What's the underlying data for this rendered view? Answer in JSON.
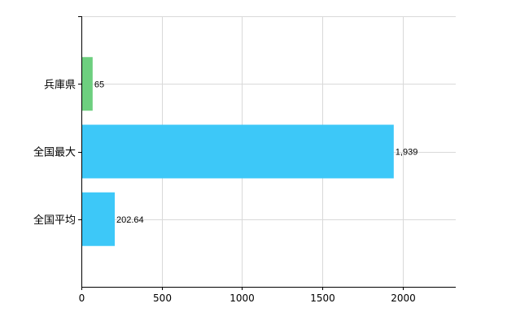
{
  "chart_data": {
    "type": "bar",
    "orientation": "horizontal",
    "categories": [
      "兵庫県",
      "全国最大",
      "全国平均"
    ],
    "values": [
      65,
      1939,
      202.64
    ],
    "value_labels": [
      "65",
      "1,939",
      "202.64"
    ],
    "colors": [
      "#6dcf7f",
      "#3dc8f8",
      "#3dc8f8"
    ],
    "xlim": [
      0,
      2330
    ],
    "xticks": [
      0,
      500,
      1000,
      1500,
      2000
    ],
    "title": "",
    "xlabel": "",
    "ylabel": "",
    "grid": true,
    "legend": "none"
  }
}
